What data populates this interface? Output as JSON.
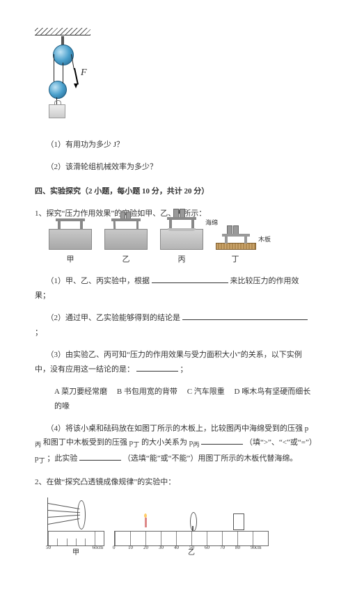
{
  "pulley_fig": {
    "force_label": "F"
  },
  "q_part1": "（1）有用功为多少 J？",
  "q_part2": "（2）该滑轮组机械效率为多少？",
  "section4": "四、实验探究（2 小题，每小题 10 分，共计 20 分）",
  "q1_stem": "1、探究“压力作用效果”的实验如甲、乙、丙所示：",
  "exp_labels": {
    "jia": "甲",
    "yi": "乙",
    "bing": "丙",
    "ding": "丁"
  },
  "exp_captions": {
    "sponge": "海绵",
    "wood": "木板"
  },
  "q1_1a": "（1）甲、乙、丙实验中，根据",
  "q1_1b": "来比较压力的作用效果；",
  "q1_2a": "（2）通过甲、乙实验能够得到的结论是",
  "q1_2b": "；",
  "q1_3a": "（3）由实验乙、丙可知“压力的作用效果与受力面积大小”的关系，以下实例中，没有应用这一结论的是：",
  "q1_3b": "；",
  "choices": {
    "A": "A 菜刀要经常磨",
    "B": "B 书包用宽的背带",
    "C": "C 汽车限重",
    "D": "D 啄木鸟有坚硬而细长的喙"
  },
  "q1_4a": "（4）将该小桌和砝码放在如图丁所示的木板上，比较图丙中海绵受到的压强 p",
  "q1_4b": "和图丁中木板受到的压强 p",
  "q1_4c": "的大小关系为 p",
  "q1_4d": "（填“>”、“<”或“=”）p",
  "q1_4e": "；此实验",
  "q1_4f": "（选填“能”或“不能”）用图丁所示的木板代替海绵。",
  "sub_bing": "丙",
  "sub_ding": "丁",
  "q2_stem": "2、在做“探究凸透镜成像规律”的实验中：",
  "fig_labels": {
    "jia2": "甲",
    "yi2": "乙"
  },
  "ruler_ticks_small": [
    "50",
    "60cm"
  ],
  "ruler_ticks_large": [
    "0",
    "10",
    "20",
    "30",
    "40",
    "50",
    "60",
    "70",
    "80",
    "90cm"
  ]
}
